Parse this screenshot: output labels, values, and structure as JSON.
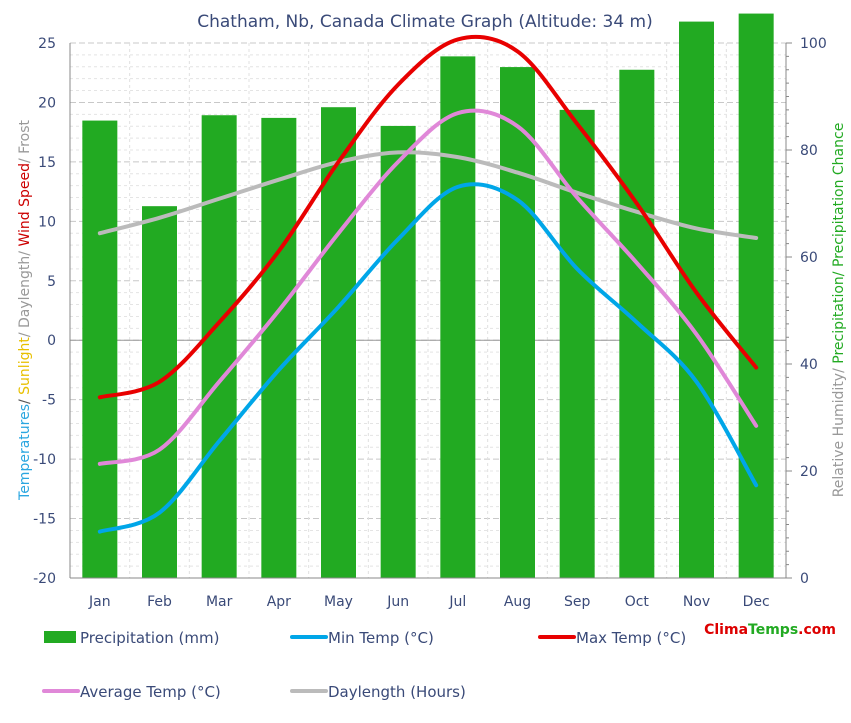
{
  "chart_data": {
    "type": "bar",
    "title": "Chatham, Nb, Canada Climate Graph (Altitude: 34 m)",
    "categories": [
      "Jan",
      "Feb",
      "Mar",
      "Apr",
      "May",
      "Jun",
      "Jul",
      "Aug",
      "Sep",
      "Oct",
      "Nov",
      "Dec"
    ],
    "left_axis": {
      "label_parts": [
        {
          "text": "Temperatures",
          "color": "#2aa6e0"
        },
        {
          "text": "/ ",
          "color": "#555555"
        },
        {
          "text": "Sunlight",
          "color": "#e8c000"
        },
        {
          "text": "/ Daylength/ ",
          "color": "#999999"
        },
        {
          "text": "Wind Speed",
          "color": "#cc0000"
        },
        {
          "text": "/ Frost",
          "color": "#999999"
        }
      ],
      "ylim": [
        -20,
        25
      ],
      "ticks": [
        "-20",
        "-15",
        "-10",
        "-5",
        "0",
        "5",
        "10",
        "15",
        "20",
        "25"
      ],
      "tick_values": [
        -20,
        -15,
        -10,
        -5,
        0,
        5,
        10,
        15,
        20,
        25
      ]
    },
    "right_axis": {
      "label_parts": [
        {
          "text": "Relative Humidity/ ",
          "color": "#999999"
        },
        {
          "text": "Precipitation/ Precipitation Chance",
          "color": "#22aa22"
        }
      ],
      "ylim": [
        0,
        100
      ],
      "ticks": [
        "0",
        "20",
        "40",
        "60",
        "80",
        "100"
      ],
      "tick_values": [
        0,
        20,
        40,
        60,
        80,
        100
      ]
    },
    "series": [
      {
        "name": "Precipitation (mm)",
        "kind": "bar",
        "axis": "right",
        "color": "#22aa22",
        "values": [
          85.5,
          69.5,
          86.5,
          86.0,
          88.0,
          84.5,
          97.5,
          95.5,
          87.5,
          95.0,
          104.0,
          105.5
        ]
      },
      {
        "name": "Min Temp (°C)",
        "kind": "line",
        "axis": "left",
        "color": "#00a6e8",
        "values": [
          -16.1,
          -14.5,
          -8.5,
          -2.5,
          2.8,
          8.5,
          12.9,
          11.8,
          6.0,
          1.5,
          -3.5,
          -12.2
        ]
      },
      {
        "name": "Max Temp (°C)",
        "kind": "line",
        "axis": "left",
        "color": "#e80000",
        "values": [
          -4.8,
          -3.5,
          1.5,
          7.5,
          15.0,
          21.5,
          25.3,
          24.3,
          18.2,
          11.5,
          4.0,
          -2.3
        ]
      },
      {
        "name": "Average Temp (°C)",
        "kind": "line",
        "axis": "left",
        "color": "#e088d8",
        "values": [
          -10.4,
          -9.2,
          -3.5,
          2.5,
          9.0,
          15.0,
          19.1,
          18.0,
          12.0,
          6.5,
          0.5,
          -7.2
        ]
      },
      {
        "name": "Daylength (Hours)",
        "kind": "line",
        "axis": "left",
        "color": "#bbbbbb",
        "values": [
          9.0,
          10.3,
          11.9,
          13.5,
          15.0,
          15.8,
          15.4,
          14.1,
          12.4,
          10.8,
          9.4,
          8.6
        ]
      }
    ],
    "grid": true,
    "legend_placement": "bottom"
  },
  "brand": {
    "part1": "Clima",
    "part2": "Temps",
    "part3": ".com",
    "color1": "#dd0000",
    "color2": "#22aa22",
    "color3": "#dd0000"
  }
}
